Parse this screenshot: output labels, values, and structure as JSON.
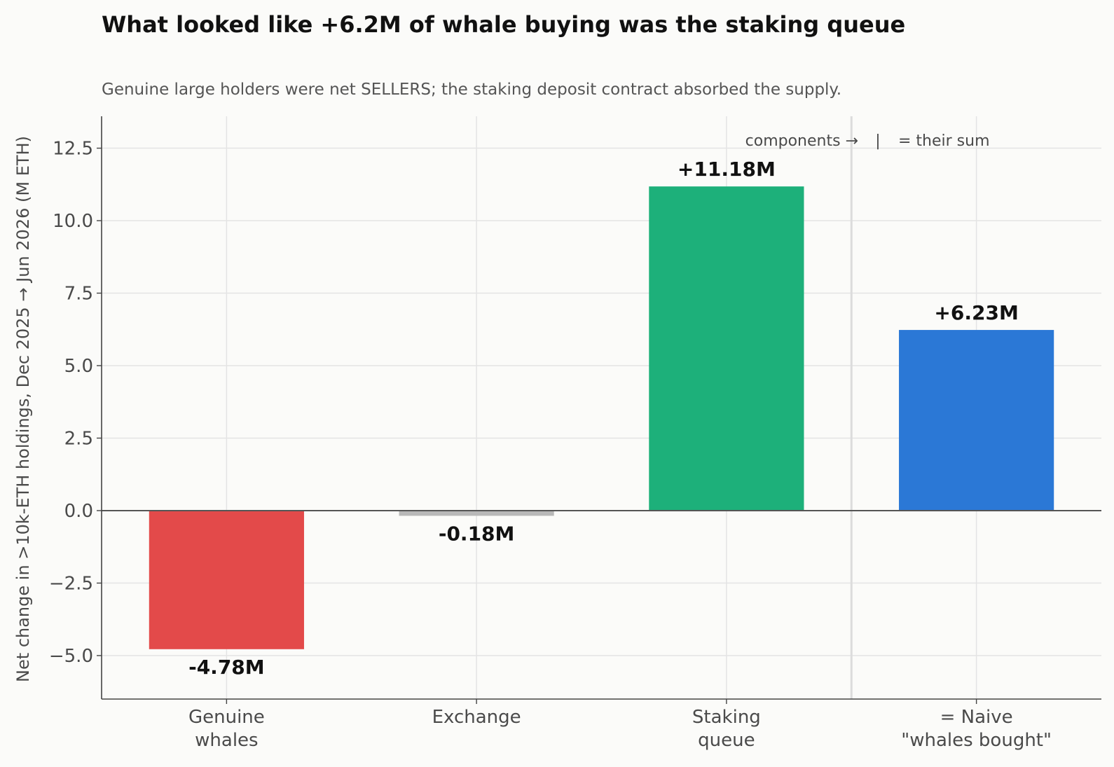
{
  "chart_data": {
    "type": "bar",
    "title": "What looked like +6.2M of whale buying was the staking queue",
    "subtitle": "Genuine large holders were net SELLERS; the staking deposit contract absorbed the supply.",
    "xlabel": "",
    "ylabel": "Net change in >10k-ETH holdings, Dec 2025 → Jun 2026 (M ETH)",
    "categories": [
      [
        "Genuine",
        "whales"
      ],
      [
        "Exchange"
      ],
      [
        "Staking",
        "queue"
      ],
      [
        "= Naive",
        "\"whales bought\""
      ]
    ],
    "values": [
      -4.78,
      -0.18,
      11.18,
      6.23
    ],
    "value_labels": [
      "-4.78M",
      "-0.18M",
      "+11.18M",
      "+6.23M"
    ],
    "colors": [
      "#e34a4a",
      "#b8b8b8",
      "#1db07a",
      "#2b78d6"
    ],
    "ylim": [
      -6.5,
      13.6
    ],
    "yticks": [
      -5.0,
      -2.5,
      0.0,
      2.5,
      5.0,
      7.5,
      10.0,
      12.5
    ],
    "ytick_labels": [
      "−5.0",
      "−2.5",
      "0.0",
      "2.5",
      "5.0",
      "7.5",
      "10.0",
      "12.5"
    ],
    "grid": true,
    "zero_line": true,
    "separator_after_index": 2,
    "annotation": {
      "components_text": "components →",
      "divider_text": "|",
      "sum_text": "= their sum"
    }
  }
}
